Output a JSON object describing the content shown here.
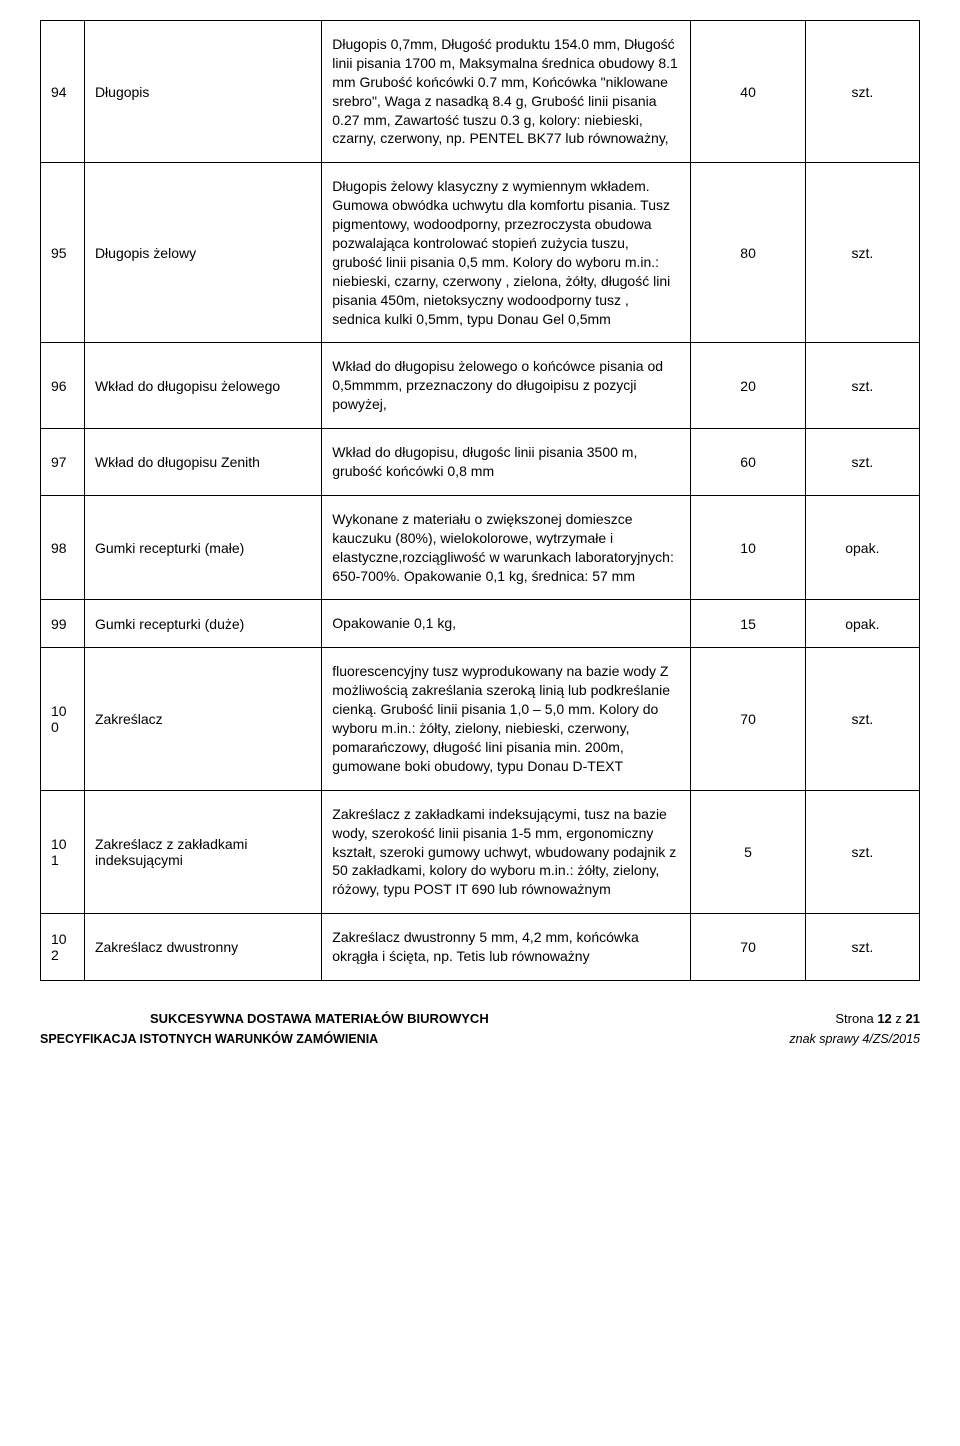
{
  "rows": [
    {
      "num": "94",
      "name": "Długopis",
      "desc": "Długopis 0,7mm, Długość produktu 154.0 mm, Długość linii pisania 1700 m, Maksymalna średnica obudowy 8.1 mm Grubość końcówki 0.7 mm, Końcówka \"niklowane srebro\", Waga z nasadką 8.4 g, Grubość linii pisania 0.27 mm, Zawartość tuszu 0.3 g, kolory: niebieski, czarny, czerwony, np. PENTEL BK77 lub równoważny,",
      "qty": "40",
      "unit": "szt."
    },
    {
      "num": "95",
      "name": "Długopis żelowy",
      "desc": "Długopis żelowy klasyczny z wymiennym wkładem. Gumowa obwódka uchwytu dla komfortu pisania. Tusz pigmentowy, wodoodporny, przezroczysta obudowa pozwalająca kontrolować stopień zużycia tuszu, grubość linii pisania 0,5 mm. Kolory do wyboru m.in.: niebieski, czarny, czerwony , zielona, żółty, długość lini pisania 450m, nietoksyczny wodoodporny tusz , sednica kulki 0,5mm, typu Donau Gel 0,5mm",
      "qty": "80",
      "unit": "szt."
    },
    {
      "num": "96",
      "name": "Wkład do długopisu żelowego",
      "desc": "Wkład do długopisu żelowego o końcówce pisania od 0,5mmmm, przeznaczony do długoipisu z pozycji powyżej,",
      "qty": "20",
      "unit": "szt."
    },
    {
      "num": "97",
      "name": "Wkład do długopisu Zenith",
      "desc": "Wkład do długopisu, długośc linii pisania 3500 m, grubość końcówki 0,8 mm",
      "qty": "60",
      "unit": "szt."
    },
    {
      "num": "98",
      "name": "Gumki recepturki (małe)",
      "desc": "Wykonane z materiału o zwiększonej domieszce kauczuku (80%), wielokolorowe, wytrzymałe i elastyczne,rozciągliwość w warunkach laboratoryjnych: 650-700%. Opakowanie 0,1 kg, średnica: 57 mm",
      "qty": "10",
      "unit": "opak."
    },
    {
      "num": "99",
      "name": "Gumki recepturki (duże)",
      "desc": "Opakowanie 0,1 kg,",
      "qty": "15",
      "unit": "opak."
    },
    {
      "num": "100",
      "name": "Zakreślacz",
      "desc": "fluorescencyjny tusz wyprodukowany na bazie wody Z możliwością zakreślania szeroką linią lub podkreślanie cienką. Grubość linii pisania 1,0 – 5,0 mm. Kolory do wyboru m.in.: żółty, zielony, niebieski, czerwony, pomarańczowy, długość lini pisania min. 200m, gumowane boki obudowy, typu Donau D-TEXT",
      "qty": "70",
      "unit": "szt."
    },
    {
      "num": "101",
      "name": "Zakreślacz z zakładkami indeksującymi",
      "desc": "Zakreślacz z zakładkami indeksującymi, tusz na bazie wody, szerokość linii pisania 1-5 mm, ergonomiczny kształt, szeroki gumowy uchwyt, wbudowany podajnik z 50 zakładkami, kolory do wyboru m.in.: żółty, zielony, różowy, typu POST IT 690 lub równoważnym",
      "qty": "5",
      "unit": "szt."
    },
    {
      "num": "102",
      "name": "Zakreślacz dwustronny",
      "desc": "Zakreślacz dwustronny 5 mm, 4,2 mm, końcówka okrągła i ścięta, np. Tetis lub równoważny",
      "qty": "70",
      "unit": "szt."
    }
  ],
  "footer": {
    "title": "SUKCESYWNA DOSTAWA MATERIAŁÓW BIUROWYCH",
    "page_label": "Strona",
    "page_num": "12",
    "page_sep": "z",
    "page_total": "21",
    "spec": "SPECYFIKACJA ISTOTNYCH WARUNKÓW ZAMÓWIENIA",
    "znak": "znak sprawy 4/ZS/2015"
  }
}
